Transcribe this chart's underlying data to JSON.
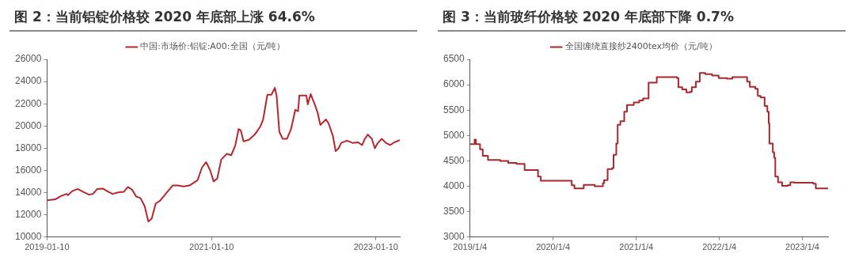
{
  "chart_data": [
    {
      "type": "line",
      "title": "图 2：当前铝锭价格较 2020 年底部上涨 64.6%",
      "legend": "top",
      "grid": false,
      "marker": "none",
      "xlim": [
        "2019-01-10",
        "2023-04-26"
      ],
      "xticks": [
        "2019-01-10",
        "2021-01-10",
        "2023-01-10"
      ],
      "ylim": [
        10000,
        26000
      ],
      "yticks": [
        10000,
        12000,
        14000,
        16000,
        18000,
        20000,
        22000,
        24000,
        26000
      ],
      "series": [
        {
          "name": "中国:市场价:铝锭:A00:全国（元/吨）",
          "color": "#b8262b",
          "x": [
            "2019-01-10",
            "2019-02-16",
            "2019-03-13",
            "2019-04-07",
            "2019-04-13",
            "2019-05-02",
            "2019-05-26",
            "2019-06-20",
            "2019-07-15",
            "2019-08-02",
            "2019-08-21",
            "2019-09-15",
            "2019-10-10",
            "2019-10-28",
            "2019-11-22",
            "2019-12-17",
            "2020-01-04",
            "2020-01-23",
            "2020-02-10",
            "2020-02-29",
            "2020-03-19",
            "2020-04-04",
            "2020-04-19",
            "2020-05-07",
            "2020-05-26",
            "2020-06-20",
            "2020-07-21",
            "2020-08-14",
            "2020-09-08",
            "2020-10-03",
            "2020-10-28",
            "2020-11-09",
            "2020-11-28",
            "2020-12-17",
            "2021-01-04",
            "2021-01-19",
            "2021-02-04",
            "2021-02-22",
            "2021-03-19",
            "2021-04-07",
            "2021-04-25",
            "2021-05-10",
            "2021-05-20",
            "2021-06-01",
            "2021-06-26",
            "2021-07-21",
            "2021-08-15",
            "2021-08-27",
            "2021-09-15",
            "2021-10-03",
            "2021-10-18",
            "2021-10-26",
            "2021-11-07",
            "2021-11-22",
            "2021-12-11",
            "2021-12-29",
            "2022-01-17",
            "2022-01-29",
            "2022-02-04",
            "2022-03-07",
            "2022-03-13",
            "2022-03-26",
            "2022-04-13",
            "2022-04-26",
            "2022-05-08",
            "2022-06-02",
            "2022-06-14",
            "2022-07-03",
            "2022-07-15",
            "2022-07-28",
            "2022-08-09",
            "2022-09-03",
            "2022-09-28",
            "2022-10-22",
            "2022-11-10",
            "2022-11-22",
            "2022-12-05",
            "2022-12-23",
            "2023-01-05",
            "2023-01-17",
            "2023-02-05",
            "2023-02-23",
            "2023-03-14",
            "2023-04-01",
            "2023-04-26"
          ],
          "values": [
            13320,
            13400,
            13700,
            13890,
            13770,
            14140,
            14340,
            14070,
            13820,
            13890,
            14320,
            14370,
            14070,
            13890,
            14020,
            14070,
            14510,
            14270,
            13650,
            13520,
            12780,
            11410,
            11660,
            13030,
            13270,
            13890,
            14640,
            14640,
            14560,
            14640,
            14960,
            15130,
            16250,
            16750,
            16000,
            15010,
            15260,
            16990,
            17490,
            17370,
            18230,
            19720,
            19600,
            18610,
            18780,
            19230,
            19970,
            20590,
            22820,
            22820,
            23440,
            22700,
            19470,
            18850,
            18850,
            19720,
            21460,
            21330,
            22750,
            22750,
            21950,
            22870,
            21950,
            21210,
            20090,
            20590,
            20220,
            19100,
            17740,
            17990,
            18480,
            18680,
            18480,
            18530,
            18280,
            18850,
            19230,
            18850,
            17990,
            18430,
            18850,
            18480,
            18280,
            18530,
            18730
          ]
        }
      ]
    },
    {
      "type": "step",
      "title": "图 3：当前玻纤价格较 2020 年底部下降 0.7%",
      "legend": "top",
      "grid": false,
      "marker": "none",
      "xlim": [
        "2019-01-04",
        "2023-04-27"
      ],
      "xticks": [
        {
          "value": "2019-01-04",
          "label": "2019/1/4"
        },
        {
          "value": "2020-01-04",
          "label": "2020/1/4"
        },
        {
          "value": "2021-01-04",
          "label": "2021/1/4"
        },
        {
          "value": "2022-01-04",
          "label": "2022/1/4"
        },
        {
          "value": "2023-01-04",
          "label": "2023/1/4"
        }
      ],
      "ylim": [
        3000,
        6500
      ],
      "yticks": [
        3000,
        3500,
        4000,
        4500,
        5000,
        5500,
        6000,
        6500
      ],
      "series": [
        {
          "name": "全国缠绕直接纱2400tex均价（元/吨）",
          "color": "#a8282c",
          "x": [
            "2019-01-04",
            "2019-01-16",
            "2019-01-24",
            "2019-01-30",
            "2019-02-17",
            "2019-03-01",
            "2019-03-24",
            "2019-05-17",
            "2019-06-21",
            "2019-07-27",
            "2019-09-01",
            "2019-10-30",
            "2019-11-11",
            "2020-03-26",
            "2020-04-07",
            "2020-05-18",
            "2020-07-05",
            "2020-08-10",
            "2020-08-15",
            "2020-08-31",
            "2020-09-20",
            "2020-09-26",
            "2020-10-08",
            "2020-10-14",
            "2020-10-26",
            "2020-11-12",
            "2020-11-24",
            "2020-12-24",
            "2021-01-17",
            "2021-02-03",
            "2021-02-27",
            "2021-04-04",
            "2021-07-02",
            "2021-07-08",
            "2021-07-25",
            "2021-08-12",
            "2021-08-30",
            "2021-09-05",
            "2021-09-23",
            "2021-10-10",
            "2021-11-03",
            "2021-12-03",
            "2022-01-01",
            "2022-02-06",
            "2022-03-02",
            "2022-05-06",
            "2022-05-18",
            "2022-06-11",
            "2022-06-22",
            "2022-07-04",
            "2022-07-22",
            "2022-08-03",
            "2022-08-09",
            "2022-08-12",
            "2022-08-27",
            "2022-09-02",
            "2022-09-07",
            "2022-09-19",
            "2022-10-07",
            "2022-10-31",
            "2022-11-12",
            "2022-11-30",
            "2023-02-21",
            "2023-03-04",
            "2023-04-27"
          ],
          "values": [
            4830,
            4830,
            4920,
            4830,
            4730,
            4600,
            4520,
            4500,
            4460,
            4440,
            4320,
            4190,
            4110,
            4020,
            3960,
            4030,
            4000,
            4060,
            4120,
            4340,
            4360,
            4620,
            4840,
            5210,
            5280,
            5470,
            5600,
            5650,
            5690,
            5730,
            6040,
            6150,
            6130,
            5950,
            5910,
            5850,
            5860,
            5950,
            6060,
            6230,
            6210,
            6180,
            6130,
            6120,
            6150,
            6060,
            5960,
            5920,
            5780,
            5750,
            5580,
            5470,
            5240,
            4840,
            4670,
            4560,
            4190,
            4080,
            4010,
            4020,
            4080,
            4070,
            4050,
            3960,
            3960
          ]
        }
      ]
    }
  ]
}
